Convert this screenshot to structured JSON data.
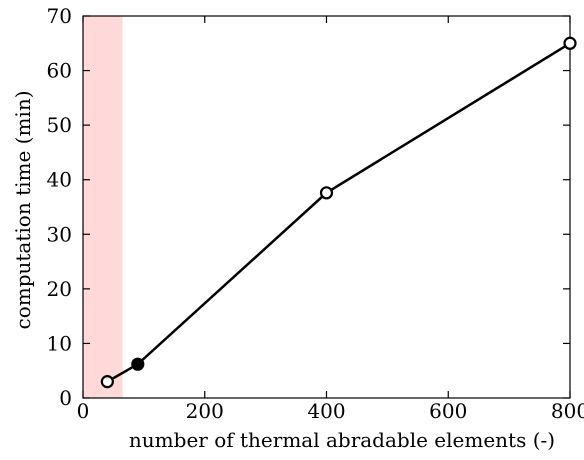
{
  "chart_data": {
    "type": "line",
    "xlabel": "number of thermal abradable elements (-)",
    "ylabel": "computation time (min)",
    "xlim": [
      0,
      800
    ],
    "ylim": [
      0,
      70
    ],
    "x_ticks": [
      0,
      200,
      400,
      600,
      800
    ],
    "y_ticks": [
      0,
      10,
      20,
      30,
      40,
      50,
      60,
      70
    ],
    "grid": false,
    "series": [
      {
        "x": [
          40,
          90,
          400,
          800
        ],
        "y": [
          3,
          6.2,
          37.6,
          65
        ],
        "marker_fill": [
          "white",
          "black",
          "white",
          "white"
        ],
        "color": "#000000"
      }
    ],
    "shaded_region": {
      "x_from": 0,
      "x_to": 65,
      "color": "#ffd9d9"
    }
  }
}
